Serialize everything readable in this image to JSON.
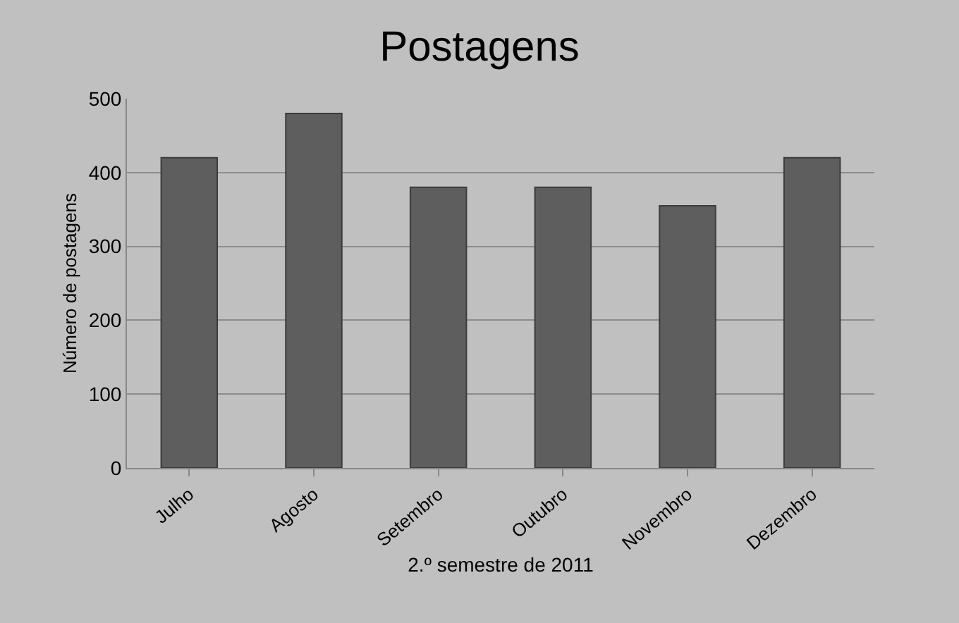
{
  "chart_data": {
    "type": "bar",
    "title": "Postagens",
    "xlabel": "2.º semestre de 2011",
    "ylabel": "Número de postagens",
    "categories": [
      "Julho",
      "Agosto",
      "Setembro",
      "Outubro",
      "Novembro",
      "Dezembro"
    ],
    "values": [
      420,
      480,
      380,
      380,
      355,
      420
    ],
    "color": "#5e5e5e",
    "ylim": [
      0,
      500
    ],
    "yticks": [
      0,
      100,
      200,
      300,
      400,
      500
    ],
    "grid": "y"
  }
}
